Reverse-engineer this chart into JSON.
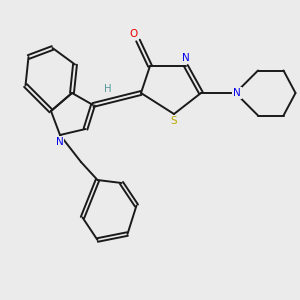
{
  "bg_color": "#ebebeb",
  "bond_color": "#1a1a1a",
  "N_color": "#0000ee",
  "O_color": "#ee0000",
  "S_color": "#bbaa00",
  "H_color": "#559999",
  "line_width": 1.4,
  "xlim": [
    0,
    10
  ],
  "ylim": [
    0,
    10
  ]
}
